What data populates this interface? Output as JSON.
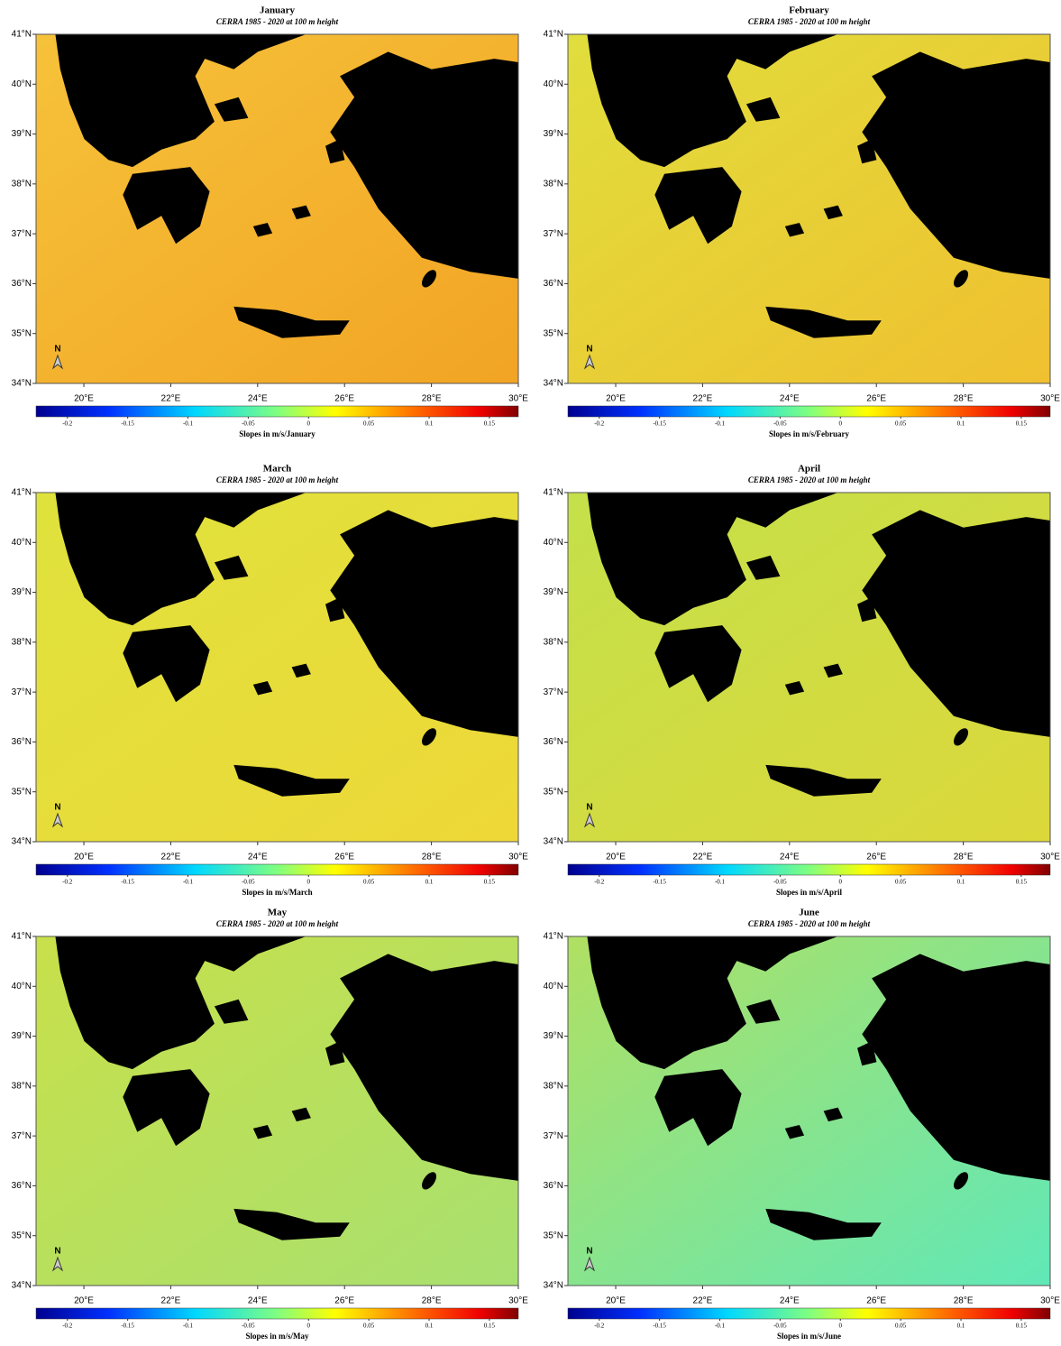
{
  "map_grid": {
    "lat_lim": [
      34,
      41
    ],
    "lon_lim": [
      18.9,
      30
    ],
    "lat_ticks": [
      {
        "value": 34,
        "label": "34°N"
      },
      {
        "value": 35,
        "label": "35°N"
      },
      {
        "value": 36,
        "label": "36°N"
      },
      {
        "value": 37,
        "label": "37°N"
      },
      {
        "value": 38,
        "label": "38°N"
      },
      {
        "value": 39,
        "label": "39°N"
      },
      {
        "value": 40,
        "label": "40°N"
      },
      {
        "value": 41,
        "label": "41°N"
      }
    ],
    "lon_ticks": [
      {
        "value": 20,
        "label": "20°E"
      },
      {
        "value": 22,
        "label": "22°E"
      },
      {
        "value": 24,
        "label": "24°E"
      },
      {
        "value": 26,
        "label": "26°E"
      },
      {
        "value": 28,
        "label": "28°E"
      },
      {
        "value": 30,
        "label": "30°E"
      }
    ],
    "colorbar_lim": [
      -0.226,
      0.174
    ],
    "colorbar_ticks": [
      -0.2,
      -0.15,
      -0.1,
      -0.05,
      0,
      0.05,
      0.1,
      0.15
    ],
    "north_label": "N"
  },
  "panels": [
    {
      "title": "January",
      "subtitle": "CERRA 1985 - 2020 at 100 m height",
      "colorbar_label": "Slopes in m/s/January"
    },
    {
      "title": "February",
      "subtitle": "CERRA 1985 - 2020 at 100 m height",
      "colorbar_label": "Slopes in m/s/February"
    },
    {
      "title": "March",
      "subtitle": "CERRA 1985 - 2020 at 100 m height",
      "colorbar_label": "Slopes in m/s/March"
    },
    {
      "title": "April",
      "subtitle": "CERRA 1985 - 2020 at 100 m height",
      "colorbar_label": "Slopes in m/s/April"
    },
    {
      "title": "May",
      "subtitle": "CERRA 1985 - 2020 at 100 m height",
      "colorbar_label": "Slopes in m/s/May"
    },
    {
      "title": "June",
      "subtitle": "CERRA 1985 - 2020 at 100 m height",
      "colorbar_label": "Slopes in m/s/June"
    }
  ]
}
